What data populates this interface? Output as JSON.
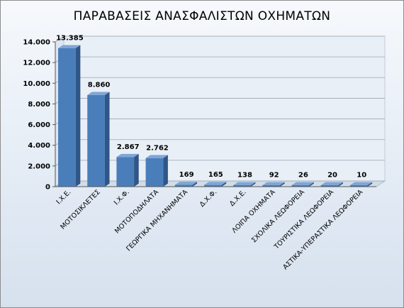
{
  "chart_data": {
    "type": "bar",
    "title": "ΠΑΡΑΒΑΣΕΙΣ ΑΝΑΣΦΑΛΙΣΤΩΝ ΟΧΗΜΑΤΩΝ",
    "xlabel": "",
    "ylabel": "",
    "categories": [
      "Ι.Χ.Ε.",
      "ΜΟΤΟΣΙΚΛΕΤΕΣ",
      "Ι.Χ.Φ.",
      "ΜΟΤΟΠΟΔΗΛΑΤΑ",
      "ΓΕΩΡΓΙΚΑ ΜΗΧΑΝΗΜΑΤΑ",
      "Δ.Χ.Φ.",
      "Δ.Χ.Ε.",
      "ΛΟΙΠΑ ΟΧΗΜΑΤΑ",
      "ΣΧΟΛΙΚΑ ΛΕΩΦΟΡΕΙΑ",
      "ΤΟΥΡΙΣΤΙΚΑ ΛΕΩΦΟΡΕΙΑ",
      "ΑΣΤΙΚΑ-ΥΠΕΡΑΣΤΙΚΑ ΛΕΩΦΟΡΕΙΑ"
    ],
    "values": [
      13385,
      8860,
      2867,
      2762,
      169,
      165,
      138,
      92,
      26,
      20,
      10
    ],
    "data_labels": [
      "13.385",
      "8.860",
      "2.867",
      "2.762",
      "169",
      "165",
      "138",
      "92",
      "26",
      "20",
      "10"
    ],
    "ylim": [
      0,
      14000
    ],
    "yticks": [
      0,
      2000,
      4000,
      6000,
      8000,
      10000,
      12000,
      14000
    ],
    "ytick_labels": [
      "0",
      "2.000",
      "4.000",
      "6.000",
      "8.000",
      "10.000",
      "12.000",
      "14.000"
    ],
    "grid": true,
    "legend": "none",
    "style": "3d-column",
    "colors": {
      "bar_front": "#4a7ebb",
      "bar_side": "#2f5686",
      "bar_top": "#7fa6d6"
    }
  }
}
